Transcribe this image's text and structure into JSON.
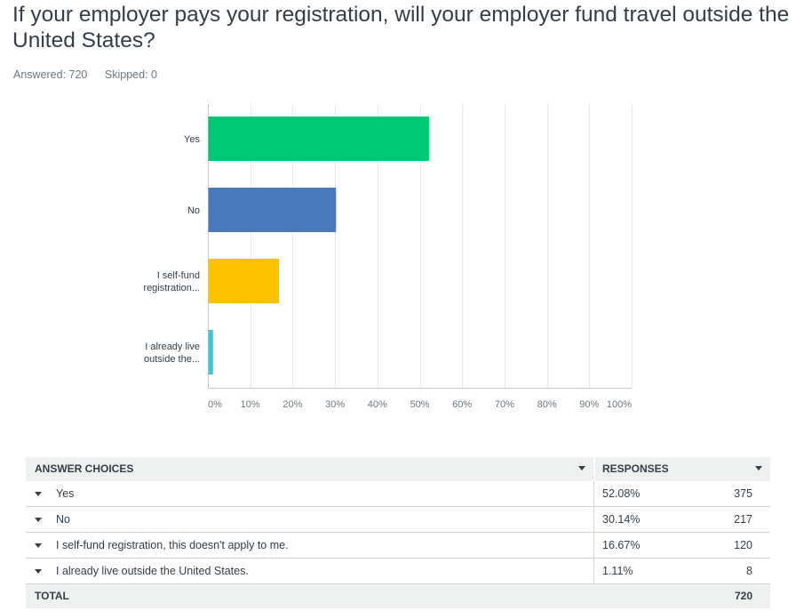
{
  "question": {
    "title": "If your employer pays your registration, will your employer fund travel outside the United States?",
    "answered": "Answered: 720",
    "skipped": "Skipped: 0"
  },
  "chart_data": {
    "type": "bar",
    "orientation": "horizontal",
    "categories": [
      "Yes",
      "No",
      "I self-fund registration...",
      "I already live outside the..."
    ],
    "category_lines": [
      [
        "Yes"
      ],
      [
        "No"
      ],
      [
        "I self-fund",
        "registration..."
      ],
      [
        "I already live",
        "outside the..."
      ]
    ],
    "values": [
      52.08,
      30.14,
      16.67,
      1.11
    ],
    "colors": [
      "#00c875",
      "#4a78bd",
      "#ffc200",
      "#3ec4d4"
    ],
    "xlim": [
      0,
      100
    ],
    "xticks": [
      "0%",
      "10%",
      "20%",
      "30%",
      "40%",
      "50%",
      "60%",
      "70%",
      "80%",
      "90%",
      "100%"
    ],
    "grid": true
  },
  "table": {
    "header_answer": "ANSWER CHOICES",
    "header_responses": "RESPONSES",
    "rows": [
      {
        "answer": "Yes",
        "percent": "52.08%",
        "count": "375"
      },
      {
        "answer": "No",
        "percent": "30.14%",
        "count": "217"
      },
      {
        "answer": "I self-fund registration, this doesn't apply to me.",
        "percent": "16.67%",
        "count": "120"
      },
      {
        "answer": "I already live outside the United States.",
        "percent": "1.11%",
        "count": "8"
      }
    ],
    "total_label": "TOTAL",
    "total_count": "720"
  }
}
